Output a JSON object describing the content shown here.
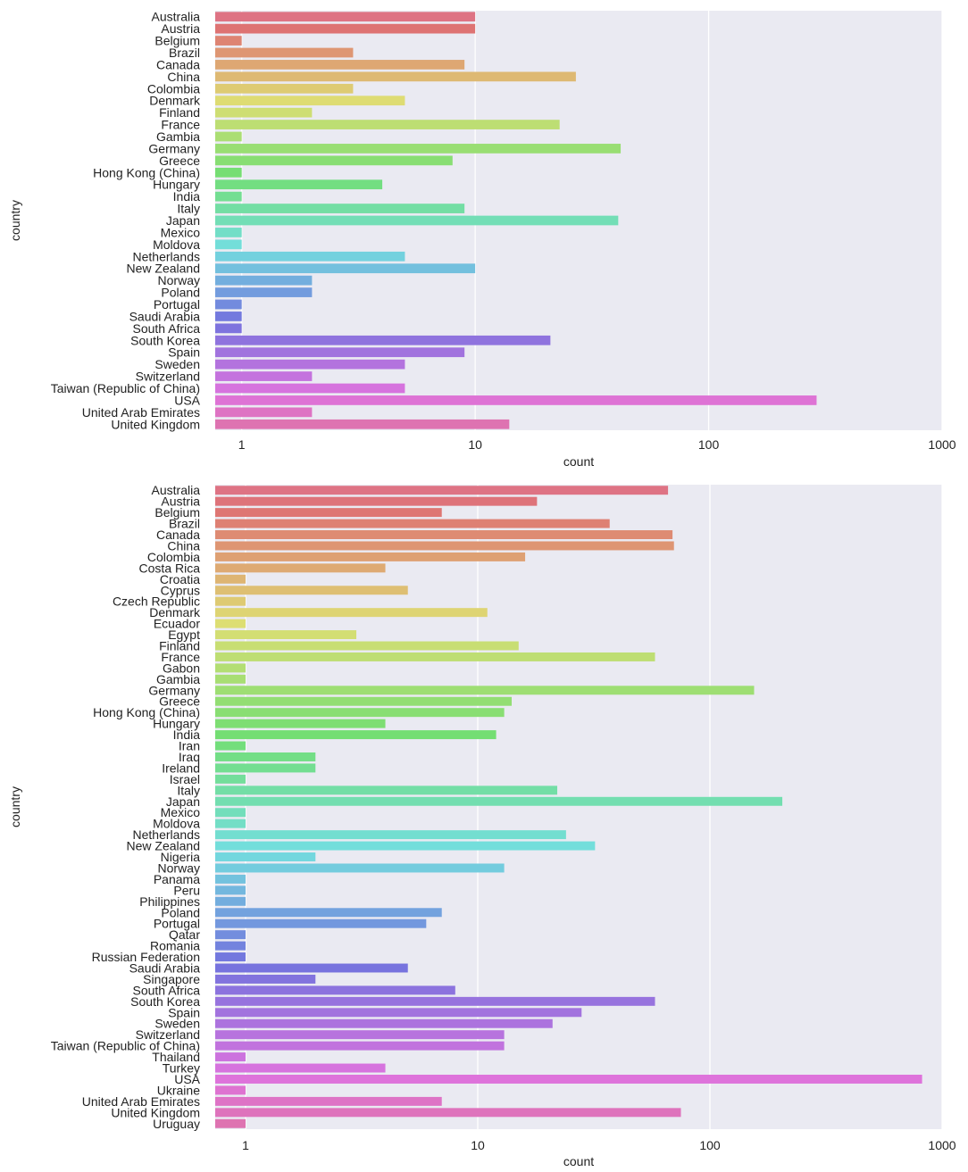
{
  "chart_data": [
    {
      "type": "bar",
      "orientation": "horizontal",
      "xscale": "log",
      "xlim": [
        0.77,
        1000
      ],
      "xticks": [
        "1",
        "10",
        "100",
        "1000"
      ],
      "xlabel": "count",
      "ylabel": "country",
      "categories": [
        "Australia",
        "Austria",
        "Belgium",
        "Brazil",
        "Canada",
        "China",
        "Colombia",
        "Denmark",
        "Finland",
        "France",
        "Gambia",
        "Germany",
        "Greece",
        "Hong Kong (China)",
        "Hungary",
        "India",
        "Italy",
        "Japan",
        "Mexico",
        "Moldova",
        "Netherlands",
        "New Zealand",
        "Norway",
        "Poland",
        "Portugal",
        "Saudi Arabia",
        "South Africa",
        "South Korea",
        "Spain",
        "Sweden",
        "Switzerland",
        "Taiwan (Republic of China)",
        "USA",
        "United Arab Emirates",
        "United Kingdom"
      ],
      "values": [
        10,
        10,
        1,
        3,
        9,
        27,
        3,
        5,
        2,
        23,
        1,
        42,
        8,
        1,
        4,
        1,
        9,
        41,
        1,
        1,
        5,
        10,
        2,
        2,
        1,
        1,
        1,
        21,
        9,
        5,
        2,
        5,
        290,
        2,
        14
      ]
    },
    {
      "type": "bar",
      "orientation": "horizontal",
      "xscale": "log",
      "xlim": [
        0.74,
        1000
      ],
      "xticks": [
        "1",
        "10",
        "100",
        "1000"
      ],
      "xlabel": "count",
      "ylabel": "country",
      "categories": [
        "Australia",
        "Austria",
        "Belgium",
        "Brazil",
        "Canada",
        "China",
        "Colombia",
        "Costa Rica",
        "Croatia",
        "Cyprus",
        "Czech Republic",
        "Denmark",
        "Ecuador",
        "Egypt",
        "Finland",
        "France",
        "Gabon",
        "Gambia",
        "Germany",
        "Greece",
        "Hong Kong (China)",
        "Hungary",
        "India",
        "Iran",
        "Iraq",
        "Ireland",
        "Israel",
        "Italy",
        "Japan",
        "Mexico",
        "Moldova",
        "Netherlands",
        "New Zealand",
        "Nigeria",
        "Norway",
        "Panama",
        "Peru",
        "Philippines",
        "Poland",
        "Portugal",
        "Qatar",
        "Romania",
        "Russian Federation",
        "Saudi Arabia",
        "Singapore",
        "South Africa",
        "South Korea",
        "Spain",
        "Sweden",
        "Switzerland",
        "Taiwan (Republic of China)",
        "Thailand",
        "Turkey",
        "USA",
        "Ukraine",
        "United Arab Emirates",
        "United Kingdom",
        "Uruguay"
      ],
      "values": [
        66,
        18,
        7,
        37,
        69,
        70,
        16,
        4,
        1,
        5,
        1,
        11,
        1,
        3,
        15,
        58,
        1,
        1,
        155,
        14,
        13,
        4,
        12,
        1,
        2,
        2,
        1,
        22,
        205,
        1,
        1,
        24,
        32,
        2,
        13,
        1,
        1,
        1,
        7,
        6,
        1,
        1,
        1,
        5,
        2,
        8,
        58,
        28,
        21,
        13,
        13,
        1,
        4,
        820,
        1,
        7,
        75,
        1
      ]
    }
  ]
}
